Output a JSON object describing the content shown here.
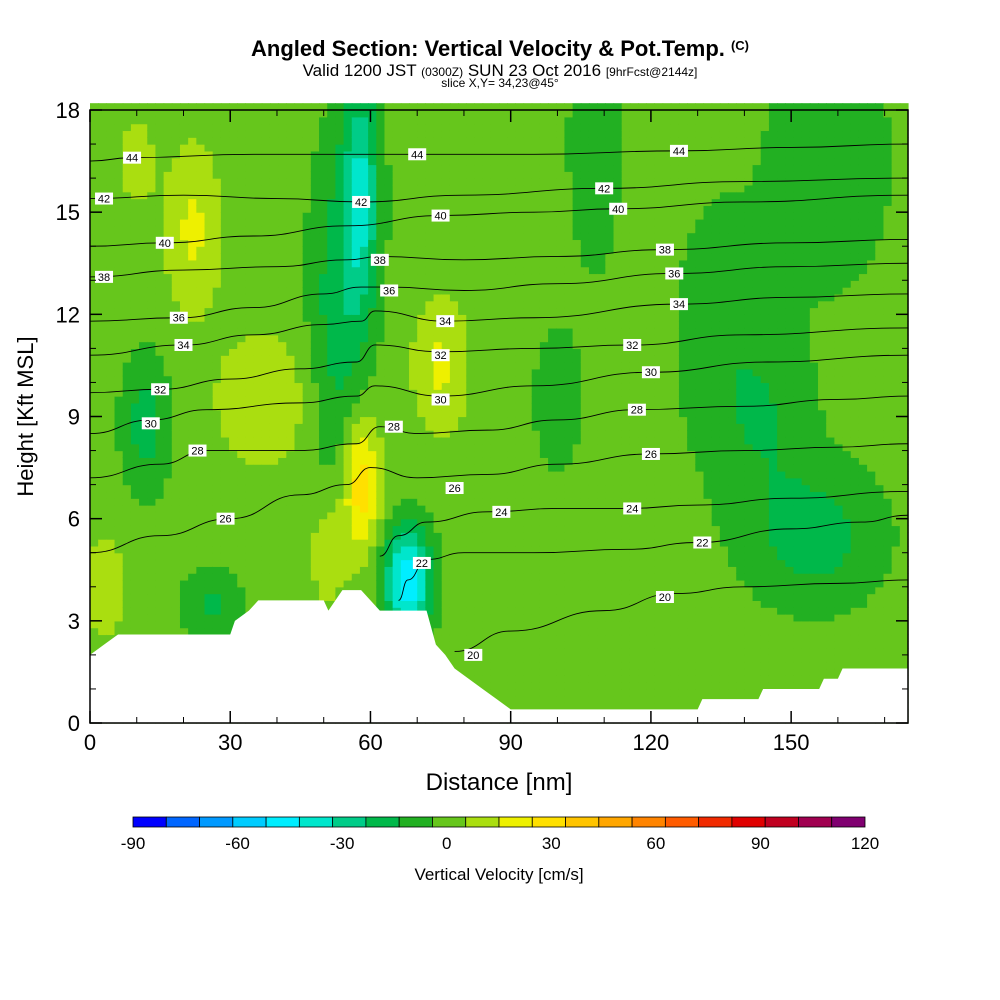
{
  "header": {
    "title": "Angled Section: Vertical Velocity & Pot.Temp.",
    "copyright": "(C)",
    "valid_prefix": "Valid 1200 JST",
    "valid_utc": "(0300Z)",
    "valid_date": "SUN 23 Oct 2016",
    "forecast": "[9hrFcst@2144z]",
    "slice": "slice X,Y= 34,23@45°"
  },
  "chart_data": {
    "type": "heatmap",
    "xlabel": "Distance [nm]",
    "ylabel": "Height [Kft MSL]",
    "xlim": [
      0,
      175
    ],
    "ylim": [
      0,
      18
    ],
    "x_ticks": [
      0,
      30,
      60,
      90,
      120,
      150
    ],
    "y_ticks": [
      0,
      3,
      6,
      9,
      12,
      15,
      18
    ],
    "colorbar": {
      "label": "Vertical Velocity [cm/s]",
      "min": -90,
      "max": 120,
      "step": 10,
      "tick_values": [
        -90,
        -60,
        -30,
        0,
        30,
        60,
        90,
        120
      ],
      "colors": [
        "#0000ff",
        "#0066ff",
        "#0099ff",
        "#00ccff",
        "#00eeff",
        "#00e6cc",
        "#00cc88",
        "#00b84a",
        "#22b022",
        "#66c61c",
        "#aade10",
        "#eef000",
        "#ffe000",
        "#ffc400",
        "#ffa600",
        "#ff8400",
        "#ff5c00",
        "#f02a00",
        "#e00000",
        "#c00020",
        "#a00050",
        "#800070"
      ]
    },
    "terrain_kft": [
      [
        0,
        2.0
      ],
      [
        3,
        2.3
      ],
      [
        6,
        2.6
      ],
      [
        30,
        2.6
      ],
      [
        31,
        3.0
      ],
      [
        34,
        3.3
      ],
      [
        36,
        3.6
      ],
      [
        50,
        3.6
      ],
      [
        51,
        3.3
      ],
      [
        54,
        3.9
      ],
      [
        58,
        3.9
      ],
      [
        60,
        3.6
      ],
      [
        62,
        3.3
      ],
      [
        72,
        3.3
      ],
      [
        74,
        2.3
      ],
      [
        76,
        2.0
      ],
      [
        78,
        1.6
      ],
      [
        81,
        1.3
      ],
      [
        84,
        1.0
      ],
      [
        87,
        0.7
      ],
      [
        90,
        0.4
      ],
      [
        130,
        0.4
      ],
      [
        131,
        0.7
      ],
      [
        143,
        0.7
      ],
      [
        144,
        1.0
      ],
      [
        156,
        1.0
      ],
      [
        157,
        1.3
      ],
      [
        160,
        1.3
      ],
      [
        161,
        1.6
      ],
      [
        175,
        1.6
      ]
    ],
    "w_features": [
      {
        "x": 10,
        "y": 16.5,
        "w": 4,
        "h": 1.5,
        "value": 15
      },
      {
        "x": 22,
        "y": 14.5,
        "w": 6,
        "h": 2.5,
        "value": 22
      },
      {
        "x": 37,
        "y": 9.5,
        "w": 10,
        "h": 2.0,
        "value": 20
      },
      {
        "x": 58,
        "y": 7.0,
        "w": 4,
        "h": 2.0,
        "value": 38
      },
      {
        "x": 51,
        "y": 5.0,
        "w": 4,
        "h": 1.5,
        "value": 20
      },
      {
        "x": 75,
        "y": 10.5,
        "w": 6,
        "h": 2.0,
        "value": 22
      },
      {
        "x": 3,
        "y": 4.0,
        "w": 5,
        "h": 1.5,
        "value": 18
      },
      {
        "x": 68,
        "y": 4.2,
        "w": 5,
        "h": 1.5,
        "value": -50
      },
      {
        "x": 58,
        "y": 15.5,
        "w": 4,
        "h": 3.5,
        "value": -30
      },
      {
        "x": 53,
        "y": 12.0,
        "w": 6,
        "h": 5.0,
        "value": -15
      },
      {
        "x": 12,
        "y": 8.8,
        "w": 5,
        "h": 2.0,
        "value": -15
      },
      {
        "x": 100,
        "y": 9.5,
        "w": 5,
        "h": 2.0,
        "value": -8
      },
      {
        "x": 155,
        "y": 5.5,
        "w": 14,
        "h": 2.0,
        "value": -15
      },
      {
        "x": 158,
        "y": 16.5,
        "w": 12,
        "h": 3.5,
        "value": -10
      },
      {
        "x": 26,
        "y": 3.5,
        "w": 6,
        "h": 1.0,
        "value": -12
      },
      {
        "x": 145,
        "y": 9.0,
        "w": 10,
        "h": 2.5,
        "value": -8
      },
      {
        "x": 135,
        "y": 11.5,
        "w": 10,
        "h": 4.0,
        "value": -6
      },
      {
        "x": 108,
        "y": 17.0,
        "w": 6,
        "h": 4.0,
        "value": -6
      }
    ],
    "isentropes": [
      {
        "theta": 20,
        "labels": [
          [
            82,
            2.0
          ],
          [
            123,
            3.7
          ]
        ],
        "points": [
          [
            78,
            2.1
          ],
          [
            90,
            2.7
          ],
          [
            110,
            3.3
          ],
          [
            125,
            3.8
          ],
          [
            140,
            4.0
          ],
          [
            160,
            4.1
          ],
          [
            175,
            4.2
          ]
        ]
      },
      {
        "theta": 22,
        "labels": [
          [
            71,
            4.7
          ],
          [
            131,
            5.3
          ]
        ],
        "points": [
          [
            66,
            3.6
          ],
          [
            68,
            4.2
          ],
          [
            72,
            4.8
          ],
          [
            80,
            5.0
          ],
          [
            95,
            5.0
          ],
          [
            115,
            5.1
          ],
          [
            130,
            5.3
          ],
          [
            150,
            5.7
          ],
          [
            165,
            5.9
          ],
          [
            175,
            6.1
          ]
        ]
      },
      {
        "theta": 24,
        "labels": [
          [
            88,
            6.2
          ],
          [
            116,
            6.3
          ]
        ],
        "points": [
          [
            62,
            4.9
          ],
          [
            66,
            5.5
          ],
          [
            72,
            5.9
          ],
          [
            85,
            6.2
          ],
          [
            100,
            6.3
          ],
          [
            115,
            6.3
          ],
          [
            130,
            6.4
          ],
          [
            150,
            6.6
          ],
          [
            175,
            6.8
          ]
        ]
      },
      {
        "theta": 26,
        "labels": [
          [
            29,
            6.0
          ],
          [
            78,
            6.9
          ],
          [
            120,
            7.9
          ]
        ],
        "points": [
          [
            0,
            5.0
          ],
          [
            15,
            5.5
          ],
          [
            30,
            6.0
          ],
          [
            45,
            6.7
          ],
          [
            55,
            7.0
          ],
          [
            60,
            7.5
          ],
          [
            70,
            7.2
          ],
          [
            85,
            7.3
          ],
          [
            100,
            7.6
          ],
          [
            120,
            7.9
          ],
          [
            140,
            8.0
          ],
          [
            160,
            8.1
          ],
          [
            175,
            8.2
          ]
        ]
      },
      {
        "theta": 28,
        "labels": [
          [
            23,
            8.0
          ],
          [
            65,
            8.7
          ],
          [
            117,
            9.2
          ]
        ],
        "points": [
          [
            0,
            7.2
          ],
          [
            15,
            7.6
          ],
          [
            25,
            8.0
          ],
          [
            45,
            8.0
          ],
          [
            57,
            8.2
          ],
          [
            62,
            8.7
          ],
          [
            70,
            8.5
          ],
          [
            85,
            8.6
          ],
          [
            100,
            8.9
          ],
          [
            117,
            9.2
          ],
          [
            140,
            9.3
          ],
          [
            160,
            9.5
          ],
          [
            175,
            9.6
          ]
        ]
      },
      {
        "theta": 30,
        "labels": [
          [
            13,
            8.8
          ],
          [
            75,
            9.5
          ],
          [
            120,
            10.3
          ]
        ],
        "points": [
          [
            0,
            8.5
          ],
          [
            13,
            8.9
          ],
          [
            25,
            9.2
          ],
          [
            45,
            9.4
          ],
          [
            57,
            9.6
          ],
          [
            61,
            9.9
          ],
          [
            75,
            9.6
          ],
          [
            95,
            9.9
          ],
          [
            120,
            10.3
          ],
          [
            145,
            10.6
          ],
          [
            175,
            10.8
          ]
        ]
      },
      {
        "theta": 32,
        "labels": [
          [
            15,
            9.8
          ],
          [
            75,
            10.8
          ],
          [
            116,
            11.1
          ]
        ],
        "points": [
          [
            0,
            9.7
          ],
          [
            15,
            9.8
          ],
          [
            30,
            10.1
          ],
          [
            45,
            10.4
          ],
          [
            57,
            10.6
          ],
          [
            61,
            11.1
          ],
          [
            75,
            10.9
          ],
          [
            95,
            11.0
          ],
          [
            116,
            11.1
          ],
          [
            140,
            11.4
          ],
          [
            175,
            11.6
          ]
        ]
      },
      {
        "theta": 34,
        "labels": [
          [
            20,
            11.1
          ],
          [
            76,
            11.8
          ],
          [
            126,
            12.3
          ]
        ],
        "points": [
          [
            0,
            10.8
          ],
          [
            20,
            11.1
          ],
          [
            35,
            11.4
          ],
          [
            50,
            11.7
          ],
          [
            58,
            11.8
          ],
          [
            61,
            12.1
          ],
          [
            76,
            11.8
          ],
          [
            95,
            11.9
          ],
          [
            126,
            12.3
          ],
          [
            150,
            12.5
          ],
          [
            175,
            12.6
          ]
        ]
      },
      {
        "theta": 36,
        "labels": [
          [
            19,
            11.9
          ],
          [
            64,
            12.7
          ],
          [
            125,
            13.2
          ]
        ],
        "points": [
          [
            0,
            11.8
          ],
          [
            19,
            11.9
          ],
          [
            35,
            12.2
          ],
          [
            50,
            12.6
          ],
          [
            58,
            12.8
          ],
          [
            64,
            12.8
          ],
          [
            80,
            12.7
          ],
          [
            100,
            12.9
          ],
          [
            125,
            13.2
          ],
          [
            150,
            13.4
          ],
          [
            175,
            13.5
          ]
        ]
      },
      {
        "theta": 38,
        "labels": [
          [
            3,
            13.1
          ],
          [
            62,
            13.6
          ],
          [
            123,
            13.9
          ]
        ],
        "points": [
          [
            0,
            13.1
          ],
          [
            20,
            13.3
          ],
          [
            40,
            13.4
          ],
          [
            55,
            13.6
          ],
          [
            62,
            13.7
          ],
          [
            80,
            13.6
          ],
          [
            100,
            13.7
          ],
          [
            123,
            13.9
          ],
          [
            150,
            14.1
          ],
          [
            175,
            14.2
          ]
        ]
      },
      {
        "theta": 40,
        "labels": [
          [
            16,
            14.1
          ],
          [
            75,
            14.9
          ],
          [
            113,
            15.1
          ]
        ],
        "points": [
          [
            0,
            14.0
          ],
          [
            16,
            14.1
          ],
          [
            35,
            14.3
          ],
          [
            55,
            14.6
          ],
          [
            75,
            14.9
          ],
          [
            95,
            15.0
          ],
          [
            113,
            15.1
          ],
          [
            140,
            15.3
          ],
          [
            175,
            15.5
          ]
        ]
      },
      {
        "theta": 42,
        "labels": [
          [
            3,
            15.4
          ],
          [
            58,
            15.3
          ],
          [
            110,
            15.7
          ]
        ],
        "points": [
          [
            0,
            15.4
          ],
          [
            20,
            15.5
          ],
          [
            40,
            15.4
          ],
          [
            58,
            15.3
          ],
          [
            80,
            15.5
          ],
          [
            110,
            15.7
          ],
          [
            140,
            15.9
          ],
          [
            175,
            16.0
          ]
        ]
      },
      {
        "theta": 44,
        "labels": [
          [
            9,
            16.6
          ],
          [
            70,
            16.7
          ],
          [
            126,
            16.8
          ]
        ],
        "points": [
          [
            0,
            16.5
          ],
          [
            9,
            16.6
          ],
          [
            35,
            16.7
          ],
          [
            55,
            16.7
          ],
          [
            70,
            16.7
          ],
          [
            95,
            16.7
          ],
          [
            126,
            16.8
          ],
          [
            150,
            16.9
          ],
          [
            175,
            17.0
          ]
        ]
      }
    ]
  }
}
